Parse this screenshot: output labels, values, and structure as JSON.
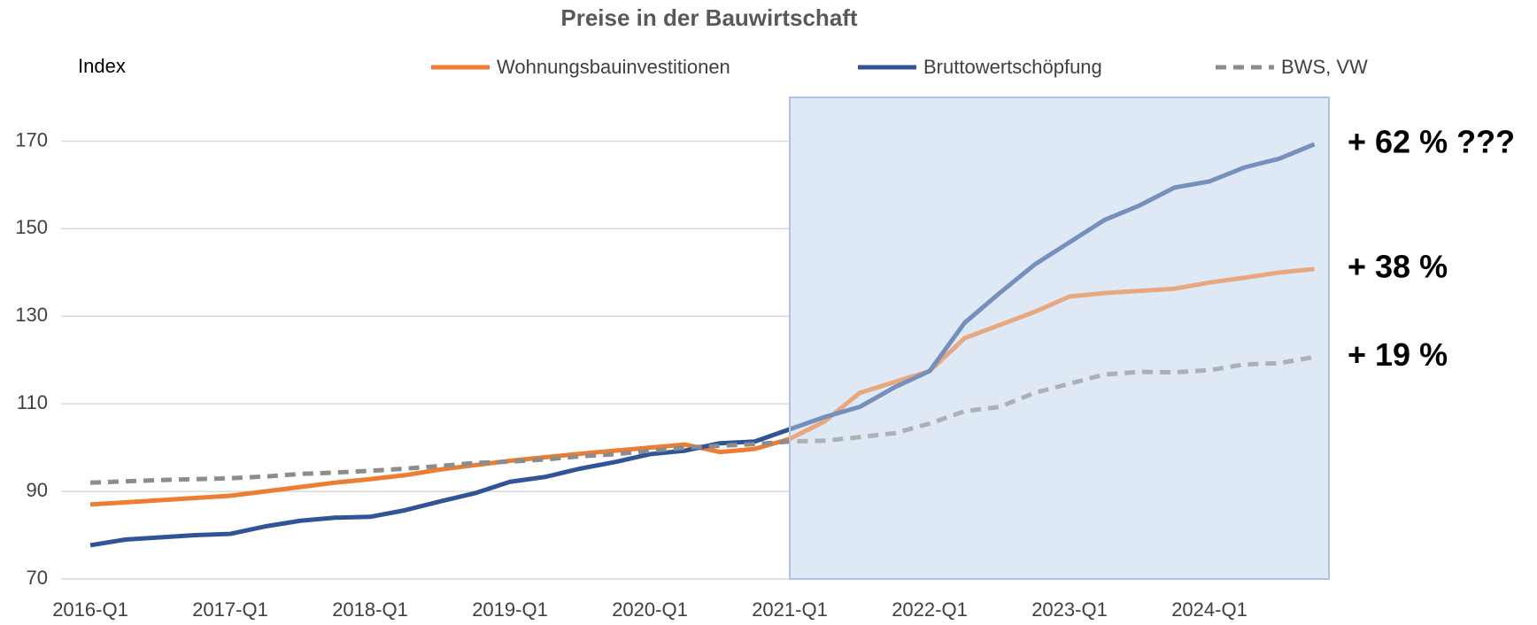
{
  "chart_data": {
    "type": "line",
    "title": "Preise in der Bauwirtschaft",
    "y_label": "Index",
    "categories": [
      "2016-Q1",
      null,
      null,
      null,
      "2017-Q1",
      null,
      null,
      null,
      "2018-Q1",
      null,
      null,
      null,
      "2019-Q1",
      null,
      null,
      null,
      "2020-Q1",
      null,
      null,
      null,
      "2021-Q1",
      null,
      null,
      null,
      "2022-Q1",
      null,
      null,
      null,
      "2023-Q1",
      null,
      null,
      null,
      "2024-Q1",
      null,
      null,
      null
    ],
    "series": [
      {
        "name": "Wohnungsbauinvestitionen",
        "color": "#ed7d31",
        "dash": false,
        "values": [
          87,
          87.5,
          88,
          88.5,
          89,
          90,
          91,
          92,
          92.8,
          93.7,
          95,
          96,
          97,
          97.8,
          98.6,
          99.3,
          100,
          100.7,
          99,
          99.7,
          102,
          106,
          112.5,
          115,
          117.5,
          125,
          128,
          131,
          134.5,
          135.3,
          135.8,
          136.3,
          137.7,
          138.8,
          140,
          140.8
        ]
      },
      {
        "name": "Bruttowertschöpfung",
        "color": "#2f5597",
        "dash": false,
        "values": [
          77.7,
          79,
          79.5,
          80,
          80.3,
          82,
          83.3,
          84,
          84.2,
          85.7,
          87.7,
          89.6,
          92.2,
          93.3,
          95.2,
          96.7,
          98.5,
          99.3,
          101,
          101.4,
          104.2,
          107,
          109.3,
          113.8,
          117.5,
          128.5,
          135.3,
          141.8,
          146.9,
          152,
          155.3,
          159.4,
          160.8,
          164,
          166,
          169.3
        ]
      },
      {
        "name": "BWS, VW",
        "color": "#8c8c8c",
        "dash": true,
        "values": [
          92,
          92.3,
          92.6,
          92.8,
          93,
          93.4,
          94,
          94.3,
          94.7,
          95.2,
          95.8,
          96.5,
          96.8,
          97.3,
          98,
          98.5,
          99.3,
          100,
          100.4,
          100.8,
          101.4,
          101.6,
          102.4,
          103.3,
          105.5,
          108.3,
          109.3,
          112.5,
          114.6,
          116.7,
          117.3,
          117.2,
          117.7,
          119,
          119.3,
          120.7
        ]
      }
    ],
    "annotations": [
      "+ 38 %",
      "+ 62 % ???",
      "+ 19 %"
    ],
    "shaded_from": "2021-Q1",
    "ylim": [
      70,
      180
    ],
    "yticks": [
      70,
      90,
      110,
      130,
      150,
      170
    ],
    "grid": true
  }
}
